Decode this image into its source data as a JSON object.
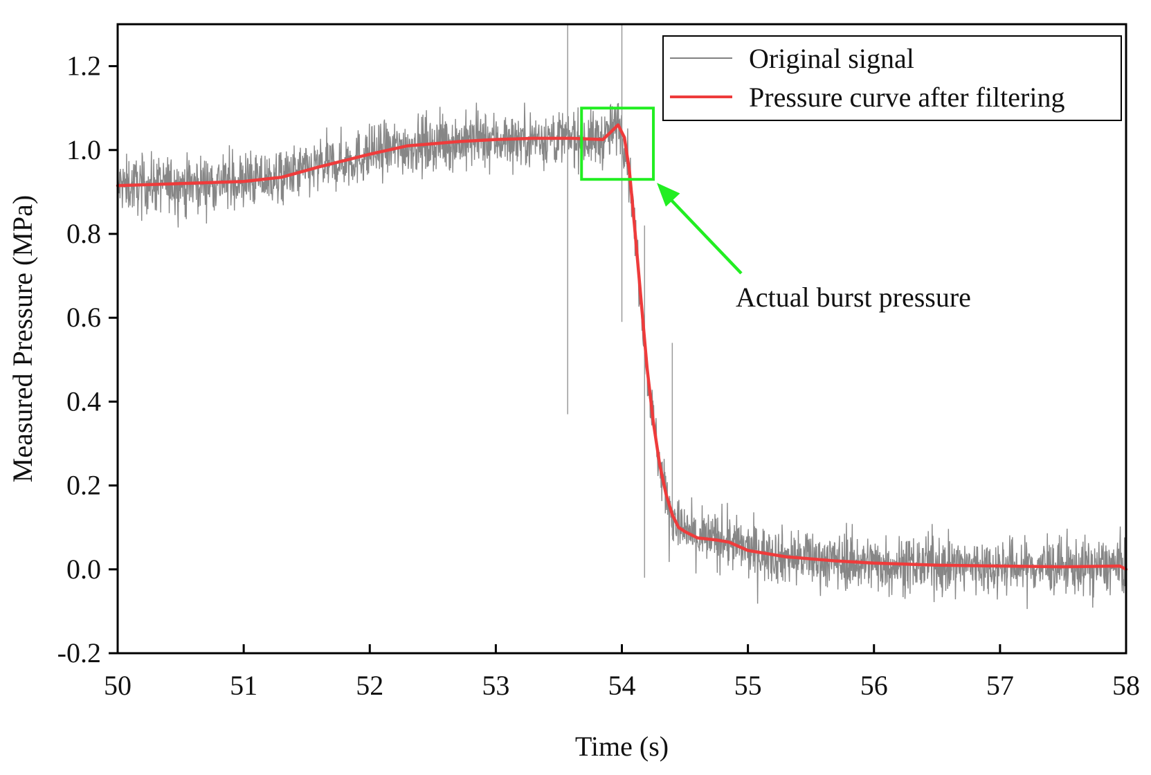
{
  "chart_data": {
    "type": "line",
    "title": "",
    "xlabel": "Time (s)",
    "ylabel": "Measured Pressure (MPa)",
    "xlim": [
      50,
      58
    ],
    "ylim": [
      -0.2,
      1.3
    ],
    "xticks": [
      50,
      51,
      52,
      53,
      54,
      55,
      56,
      57,
      58
    ],
    "xtick_labels": [
      "50",
      "51",
      "52",
      "53",
      "54",
      "55",
      "56",
      "57",
      "58"
    ],
    "yticks": [
      -0.2,
      0.0,
      0.2,
      0.4,
      0.6,
      0.8,
      1.0,
      1.2
    ],
    "ytick_labels": [
      "-0.2",
      "0.0",
      "0.2",
      "0.4",
      "0.6",
      "0.8",
      "1.0",
      "1.2"
    ],
    "grid": false,
    "legend_position": "top-right",
    "series": [
      {
        "name": "Original signal",
        "color": "#808080",
        "style": "noisy band around the filtered curve",
        "noise_amplitude": 0.06,
        "spikes": [
          {
            "x": 53.57,
            "low": 0.37,
            "high": 1.3
          },
          {
            "x": 54.0,
            "low": 0.59,
            "high": 1.3
          },
          {
            "x": 54.18,
            "low": -0.02,
            "high": 0.82
          },
          {
            "x": 54.4,
            "low": 0.08,
            "high": 0.54
          }
        ]
      },
      {
        "name": "Pressure curve after filtering",
        "color": "#ee3b3b",
        "x": [
          50.0,
          50.5,
          51.0,
          51.3,
          51.6,
          52.0,
          52.3,
          52.7,
          53.0,
          53.3,
          53.6,
          53.85,
          53.92,
          53.97,
          54.02,
          54.06,
          54.1,
          54.15,
          54.2,
          54.25,
          54.3,
          54.35,
          54.4,
          54.45,
          54.5,
          54.6,
          54.75,
          54.85,
          55.0,
          55.3,
          55.7,
          56.0,
          56.5,
          57.0,
          57.5,
          57.95,
          58.0
        ],
        "y": [
          0.915,
          0.92,
          0.925,
          0.935,
          0.96,
          0.99,
          1.01,
          1.02,
          1.025,
          1.028,
          1.028,
          1.025,
          1.045,
          1.06,
          1.03,
          0.95,
          0.82,
          0.65,
          0.48,
          0.35,
          0.25,
          0.18,
          0.13,
          0.1,
          0.09,
          0.075,
          0.07,
          0.065,
          0.045,
          0.03,
          0.02,
          0.015,
          0.01,
          0.008,
          0.006,
          0.008,
          0.0
        ]
      }
    ],
    "annotations": [
      {
        "type": "box",
        "color": "#22ee22",
        "x_range": [
          53.68,
          54.25
        ],
        "y_range": [
          0.93,
          1.1
        ],
        "label": "Actual burst pressure"
      }
    ]
  }
}
